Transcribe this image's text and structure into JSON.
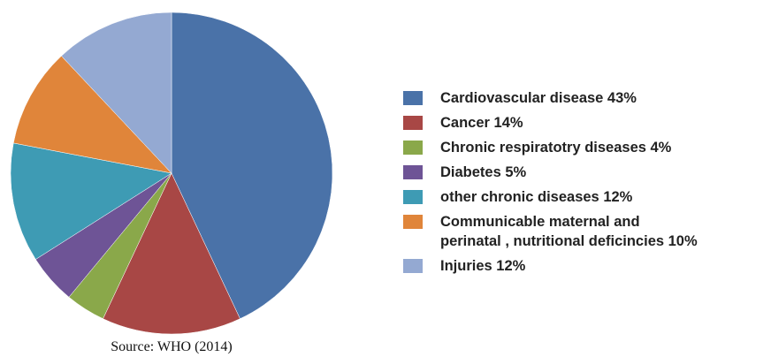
{
  "chart_data": {
    "type": "pie",
    "source": "Source: WHO (2014)",
    "series": [
      {
        "name": "Cardiovascular disease 43%",
        "color": "#4a72a8",
        "values": [
          43
        ]
      },
      {
        "name": "Cancer 14%",
        "color": "#a84745",
        "values": [
          14
        ]
      },
      {
        "name": "Chronic respiratotry diseases 4%",
        "color": "#8aa84a",
        "values": [
          4
        ]
      },
      {
        "name": "Diabetes 5%",
        "color": "#6e5496",
        "values": [
          5
        ]
      },
      {
        "name": "other chronic diseases 12%",
        "color": "#3e9bb4",
        "values": [
          12
        ]
      },
      {
        "name": "Communicable maternal and\nperinatal , nutritional deficincies 10%",
        "color": "#e0853a",
        "values": [
          10
        ]
      },
      {
        "name": "Injuries 12%",
        "color": "#94a9d2",
        "values": [
          12
        ]
      }
    ]
  }
}
